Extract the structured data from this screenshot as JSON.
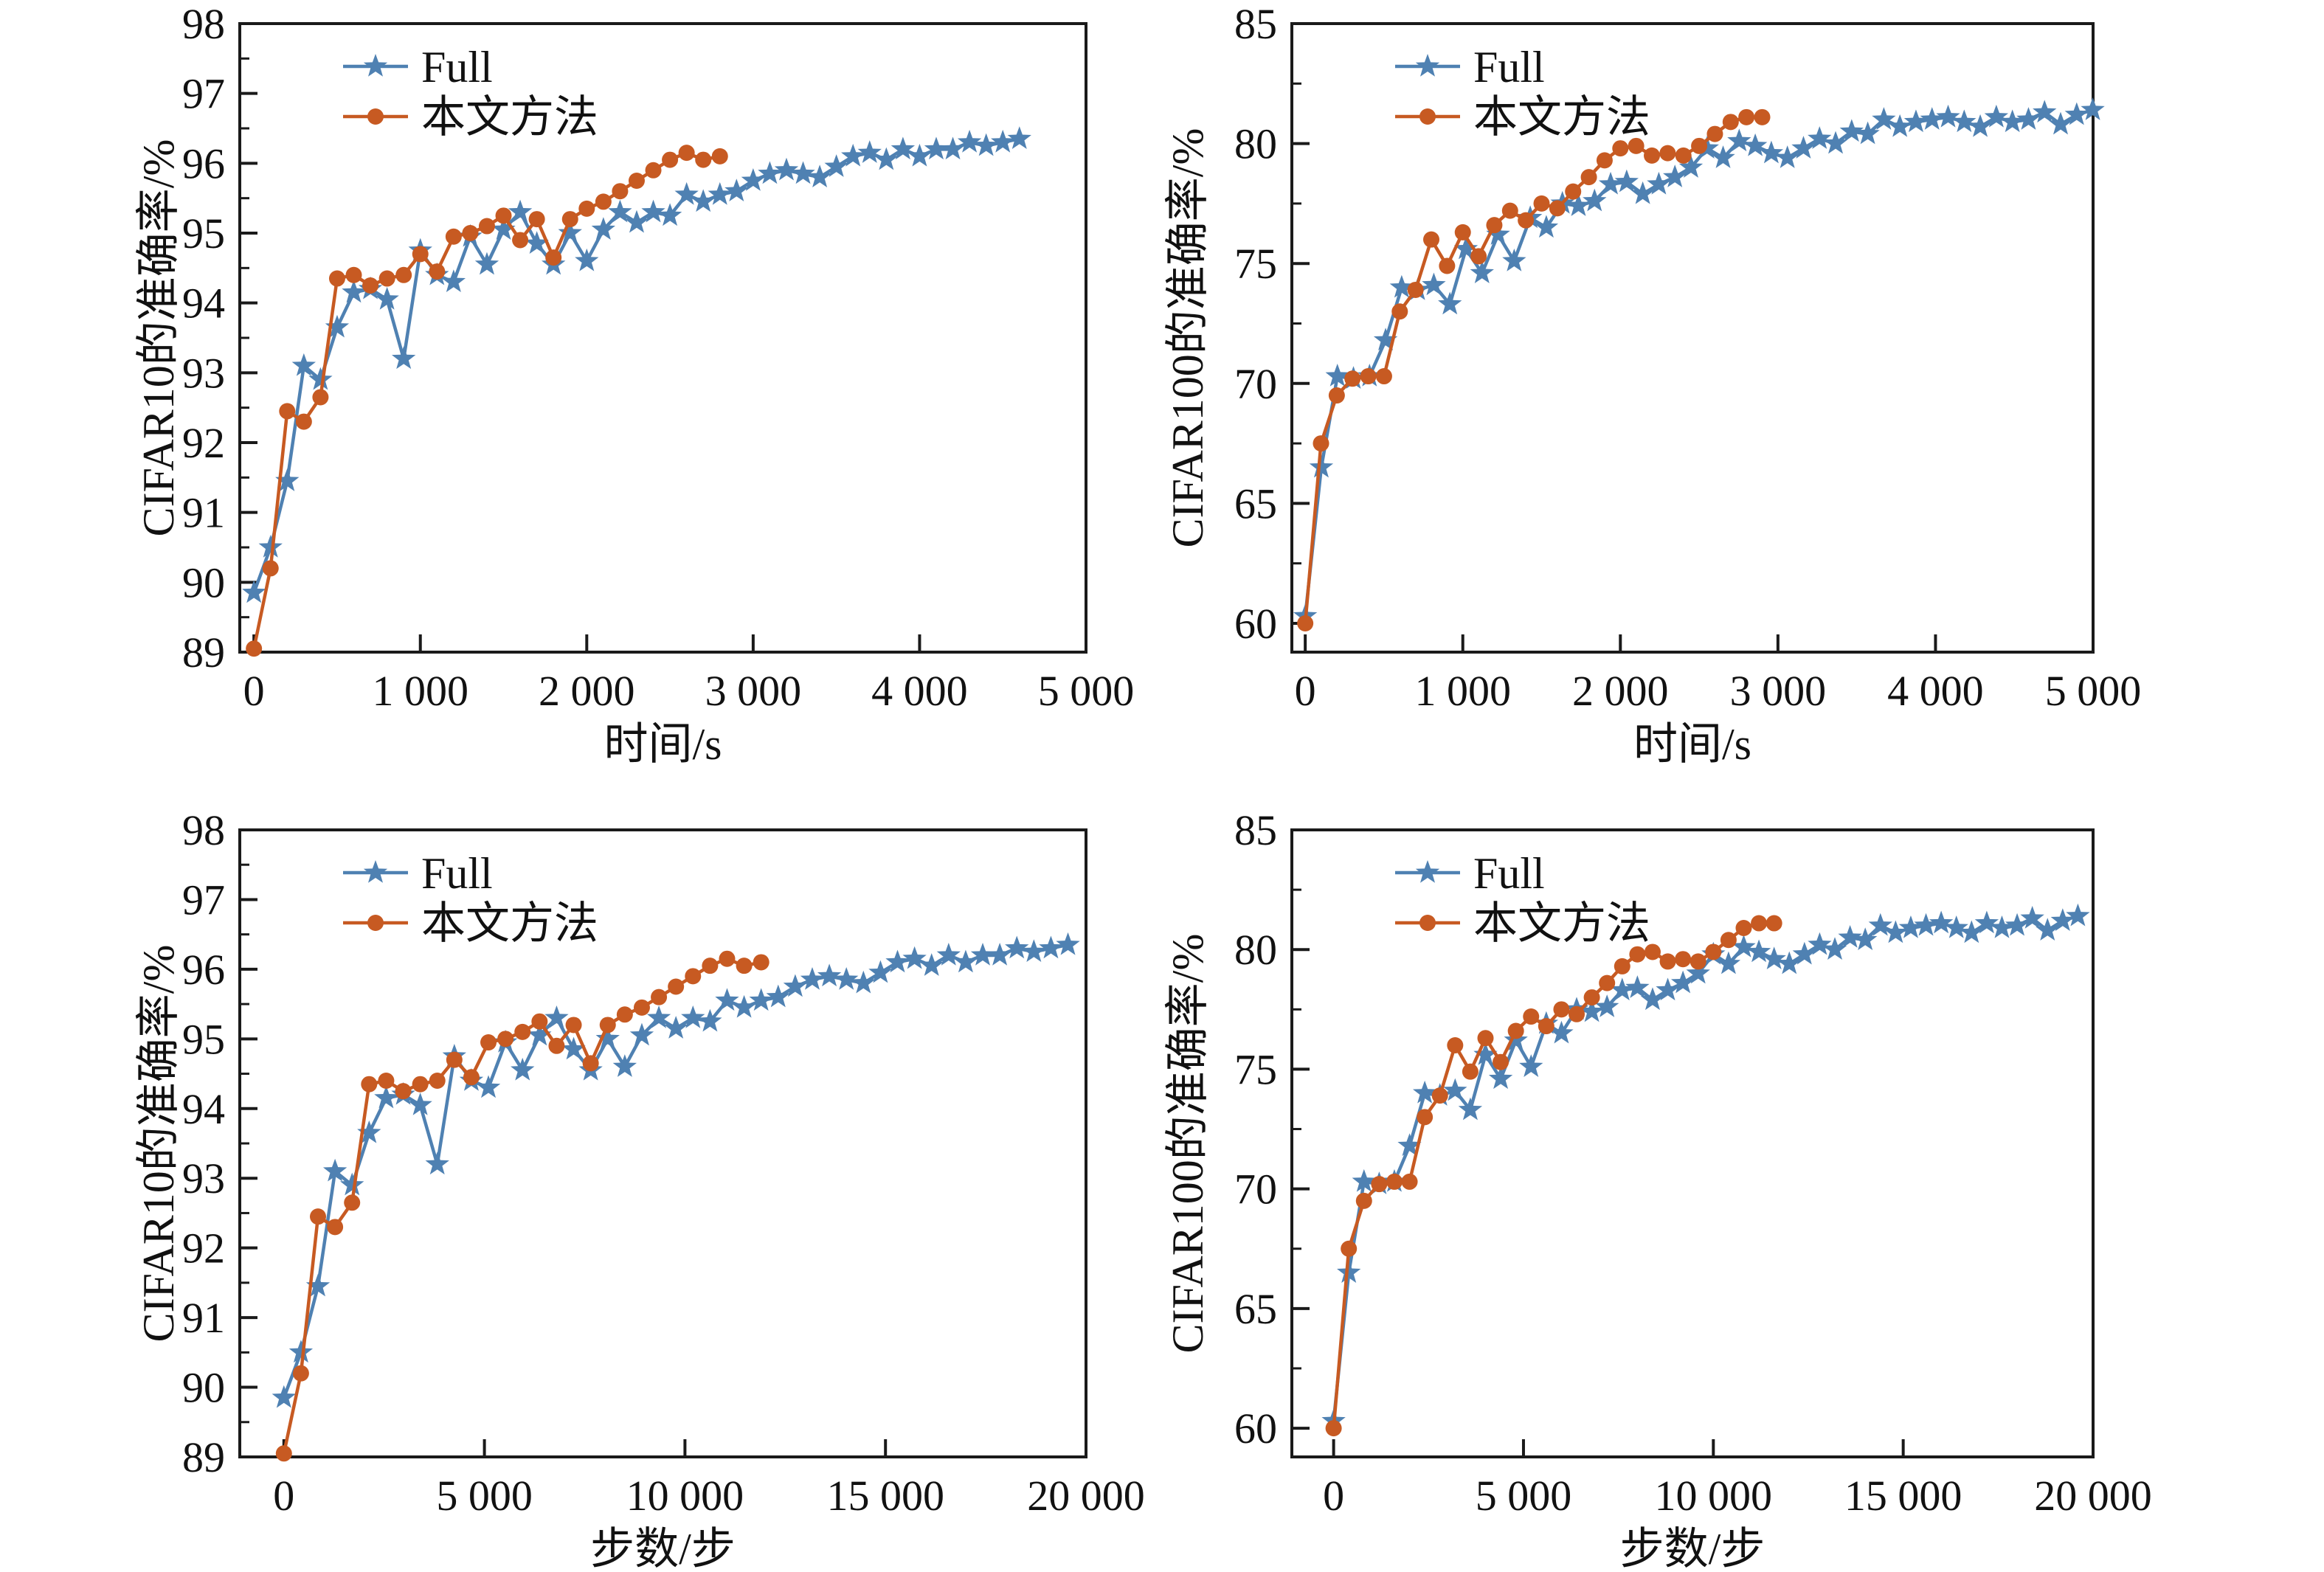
{
  "figure_title": "",
  "colors": {
    "full": "#4f81b2",
    "ours": "#c75a22",
    "axis": "#1a1a1a",
    "background": "#ffffff"
  },
  "legend": {
    "items": [
      {
        "key": "full",
        "label": "Full",
        "marker": "star"
      },
      {
        "key": "ours",
        "label": "本文方法",
        "marker": "circle"
      }
    ],
    "position": "upper-left"
  },
  "chart_data": [
    {
      "id": "cifar10-time",
      "type": "line",
      "title": "",
      "xlabel": "时间/s",
      "ylabel": "CIFAR10的准确率/%",
      "xlim": [
        -85,
        5000
      ],
      "ylim": [
        89,
        98
      ],
      "grid": false,
      "legend_position": "upper-left",
      "xticks": [
        {
          "v": 0,
          "label": "0"
        },
        {
          "v": 1000,
          "label": "1 000"
        },
        {
          "v": 2000,
          "label": "2 000"
        },
        {
          "v": 3000,
          "label": "3 000"
        },
        {
          "v": 4000,
          "label": "4 000"
        },
        {
          "v": 5000,
          "label": "5 000"
        }
      ],
      "yticks": [
        {
          "v": 89,
          "label": "89"
        },
        {
          "v": 90,
          "label": "90"
        },
        {
          "v": 91,
          "label": "91"
        },
        {
          "v": 92,
          "label": "92"
        },
        {
          "v": 93,
          "label": "93"
        },
        {
          "v": 94,
          "label": "94"
        },
        {
          "v": 95,
          "label": "95"
        },
        {
          "v": 96,
          "label": "96"
        },
        {
          "v": 97,
          "label": "97"
        },
        {
          "v": 98,
          "label": "98"
        }
      ],
      "yminor_step": 0.5,
      "series": [
        {
          "name": "Full",
          "key": "full",
          "marker": "star",
          "x": [
            0,
            100,
            200,
            300,
            400,
            500,
            600,
            700,
            800,
            900,
            1000,
            1100,
            1200,
            1300,
            1400,
            1500,
            1600,
            1700,
            1800,
            1900,
            2000,
            2100,
            2200,
            2300,
            2400,
            2500,
            2600,
            2700,
            2800,
            2900,
            3000,
            3100,
            3200,
            3300,
            3400,
            3500,
            3600,
            3700,
            3800,
            3900,
            4000,
            4100,
            4200,
            4300,
            4400,
            4500,
            4600
          ],
          "y": [
            89.85,
            90.5,
            91.45,
            93.1,
            92.9,
            93.65,
            94.15,
            94.2,
            94.05,
            93.2,
            94.75,
            94.4,
            94.3,
            94.95,
            94.55,
            95.05,
            95.3,
            94.85,
            94.55,
            95.0,
            94.6,
            95.05,
            95.3,
            95.15,
            95.3,
            95.25,
            95.55,
            95.45,
            95.55,
            95.6,
            95.75,
            95.85,
            95.9,
            95.85,
            95.8,
            95.95,
            96.1,
            96.15,
            96.05,
            96.2,
            96.1,
            96.2,
            96.2,
            96.3,
            96.25,
            96.3,
            96.35
          ]
        },
        {
          "name": "本文方法",
          "key": "ours",
          "marker": "circle",
          "x": [
            0,
            100,
            200,
            300,
            400,
            500,
            600,
            700,
            800,
            900,
            1000,
            1100,
            1200,
            1300,
            1400,
            1500,
            1600,
            1700,
            1800,
            1900,
            2000,
            2100,
            2200,
            2300,
            2400,
            2500,
            2600,
            2700,
            2800
          ],
          "y": [
            89.05,
            90.2,
            92.45,
            92.3,
            92.65,
            94.35,
            94.4,
            94.25,
            94.35,
            94.4,
            94.7,
            94.45,
            94.95,
            95.0,
            95.1,
            95.25,
            94.9,
            95.2,
            94.65,
            95.2,
            95.35,
            95.45,
            95.6,
            95.75,
            95.9,
            96.05,
            96.15,
            96.05,
            96.1
          ]
        }
      ]
    },
    {
      "id": "cifar100-time",
      "type": "line",
      "title": "",
      "xlabel": "时间/s",
      "ylabel": "CIFAR100的准确率/%",
      "xlim": [
        -85,
        5000
      ],
      "ylim": [
        58.8,
        85
      ],
      "grid": false,
      "legend_position": "upper-left",
      "xticks": [
        {
          "v": 0,
          "label": "0"
        },
        {
          "v": 1000,
          "label": "1 000"
        },
        {
          "v": 2000,
          "label": "2 000"
        },
        {
          "v": 3000,
          "label": "3 000"
        },
        {
          "v": 4000,
          "label": "4 000"
        },
        {
          "v": 5000,
          "label": "5 000"
        }
      ],
      "yticks": [
        {
          "v": 60,
          "label": "60"
        },
        {
          "v": 65,
          "label": "65"
        },
        {
          "v": 70,
          "label": "70"
        },
        {
          "v": 75,
          "label": "75"
        },
        {
          "v": 80,
          "label": "80"
        },
        {
          "v": 85,
          "label": "85"
        }
      ],
      "yminor_step": 2.5,
      "series": [
        {
          "name": "Full",
          "key": "full",
          "marker": "star",
          "x": [
            0,
            102,
            204,
            306,
            408,
            510,
            612,
            714,
            816,
            918,
            1020,
            1122,
            1224,
            1326,
            1428,
            1530,
            1632,
            1734,
            1836,
            1938,
            2040,
            2142,
            2244,
            2346,
            2448,
            2550,
            2652,
            2754,
            2856,
            2958,
            3060,
            3162,
            3264,
            3366,
            3468,
            3570,
            3672,
            3774,
            3876,
            3978,
            4080,
            4182,
            4284,
            4386,
            4488,
            4590,
            4692,
            4794,
            4896,
            4998
          ],
          "y": [
            60.3,
            66.5,
            70.3,
            70.2,
            70.3,
            71.8,
            74.0,
            73.9,
            74.1,
            73.3,
            75.6,
            74.6,
            76.2,
            75.1,
            76.9,
            76.5,
            77.5,
            77.4,
            77.6,
            78.3,
            78.4,
            77.9,
            78.3,
            78.6,
            79.0,
            79.8,
            79.4,
            80.1,
            79.9,
            79.6,
            79.4,
            79.8,
            80.2,
            80.0,
            80.5,
            80.4,
            81.0,
            80.7,
            80.9,
            81.0,
            81.1,
            80.9,
            80.7,
            81.1,
            80.9,
            81.0,
            81.3,
            80.8,
            81.2,
            81.4
          ]
        },
        {
          "name": "本文方法",
          "key": "ours",
          "marker": "circle",
          "x": [
            0,
            100,
            200,
            300,
            400,
            500,
            600,
            700,
            800,
            900,
            1000,
            1100,
            1200,
            1300,
            1400,
            1500,
            1600,
            1700,
            1800,
            1900,
            2000,
            2100,
            2200,
            2300,
            2400,
            2500,
            2600,
            2700,
            2800,
            2900
          ],
          "y": [
            60.0,
            67.5,
            69.5,
            70.2,
            70.3,
            70.3,
            73.0,
            73.9,
            76.0,
            74.9,
            76.3,
            75.3,
            76.6,
            77.2,
            76.8,
            77.5,
            77.3,
            78.0,
            78.6,
            79.3,
            79.8,
            79.9,
            79.5,
            79.6,
            79.5,
            79.9,
            80.4,
            80.9,
            81.1,
            81.1
          ]
        }
      ]
    },
    {
      "id": "cifar10-steps",
      "type": "line",
      "title": "",
      "xlabel": "步数/步",
      "ylabel": "CIFAR10的准确率/%",
      "xlim": [
        -1100,
        20000
      ],
      "ylim": [
        89,
        98
      ],
      "grid": false,
      "legend_position": "upper-left",
      "xticks": [
        {
          "v": 0,
          "label": "0"
        },
        {
          "v": 5000,
          "label": "5 000"
        },
        {
          "v": 10000,
          "label": "10 000"
        },
        {
          "v": 15000,
          "label": "15 000"
        },
        {
          "v": 20000,
          "label": "20 000"
        }
      ],
      "yticks": [
        {
          "v": 89,
          "label": "89"
        },
        {
          "v": 90,
          "label": "90"
        },
        {
          "v": 91,
          "label": "91"
        },
        {
          "v": 92,
          "label": "92"
        },
        {
          "v": 93,
          "label": "93"
        },
        {
          "v": 94,
          "label": "94"
        },
        {
          "v": 95,
          "label": "95"
        },
        {
          "v": 96,
          "label": "96"
        },
        {
          "v": 97,
          "label": "97"
        },
        {
          "v": 98,
          "label": "98"
        }
      ],
      "yminor_step": 0.5,
      "series": [
        {
          "name": "Full",
          "key": "full",
          "marker": "star",
          "x": [
            0,
            425,
            850,
            1275,
            1700,
            2125,
            2550,
            2975,
            3400,
            3825,
            4250,
            4675,
            5100,
            5525,
            5950,
            6375,
            6800,
            7225,
            7650,
            8075,
            8500,
            8925,
            9350,
            9775,
            10200,
            10625,
            11050,
            11475,
            11900,
            12325,
            12750,
            13175,
            13600,
            14025,
            14450,
            14875,
            15300,
            15725,
            16150,
            16575,
            17000,
            17425,
            17850,
            18275,
            18700,
            19125,
            19550
          ],
          "y": [
            89.85,
            90.5,
            91.45,
            93.1,
            92.9,
            93.65,
            94.15,
            94.2,
            94.05,
            93.2,
            94.75,
            94.4,
            94.3,
            94.95,
            94.55,
            95.05,
            95.3,
            94.85,
            94.55,
            95.0,
            94.6,
            95.05,
            95.3,
            95.15,
            95.3,
            95.25,
            95.55,
            95.45,
            95.55,
            95.6,
            95.75,
            95.85,
            95.9,
            95.85,
            95.8,
            95.95,
            96.1,
            96.15,
            96.05,
            96.2,
            96.1,
            96.2,
            96.2,
            96.3,
            96.25,
            96.3,
            96.35
          ]
        },
        {
          "name": "本文方法",
          "key": "ours",
          "marker": "circle",
          "x": [
            0,
            425,
            850,
            1275,
            1700,
            2125,
            2550,
            2975,
            3400,
            3825,
            4250,
            4675,
            5100,
            5525,
            5950,
            6375,
            6800,
            7225,
            7650,
            8075,
            8500,
            8925,
            9350,
            9775,
            10200,
            10625,
            11050,
            11475,
            11900
          ],
          "y": [
            89.05,
            90.2,
            92.45,
            92.3,
            92.65,
            94.35,
            94.4,
            94.25,
            94.35,
            94.4,
            94.7,
            94.45,
            94.95,
            95.0,
            95.1,
            95.25,
            94.9,
            95.2,
            94.65,
            95.2,
            95.35,
            95.45,
            95.6,
            95.75,
            95.9,
            96.05,
            96.15,
            96.05,
            96.1
          ]
        }
      ]
    },
    {
      "id": "cifar100-steps",
      "type": "line",
      "title": "",
      "xlabel": "步数/步",
      "ylabel": "CIFAR100的准确率/%",
      "xlim": [
        -1100,
        20000
      ],
      "ylim": [
        58.8,
        85
      ],
      "grid": false,
      "legend_position": "upper-left",
      "xticks": [
        {
          "v": 0,
          "label": "0"
        },
        {
          "v": 5000,
          "label": "5 000"
        },
        {
          "v": 10000,
          "label": "10 000"
        },
        {
          "v": 15000,
          "label": "15 000"
        },
        {
          "v": 20000,
          "label": "20 000"
        }
      ],
      "yticks": [
        {
          "v": 60,
          "label": "60"
        },
        {
          "v": 65,
          "label": "65"
        },
        {
          "v": 70,
          "label": "70"
        },
        {
          "v": 75,
          "label": "75"
        },
        {
          "v": 80,
          "label": "80"
        },
        {
          "v": 85,
          "label": "85"
        }
      ],
      "yminor_step": 2.5,
      "series": [
        {
          "name": "Full",
          "key": "full",
          "marker": "star",
          "x": [
            0,
            400,
            800,
            1200,
            1600,
            2000,
            2400,
            2800,
            3200,
            3600,
            4000,
            4400,
            4800,
            5200,
            5600,
            6000,
            6400,
            6800,
            7200,
            7600,
            8000,
            8400,
            8800,
            9200,
            9600,
            10000,
            10400,
            10800,
            11200,
            11600,
            12000,
            12400,
            12800,
            13200,
            13600,
            14000,
            14400,
            14800,
            15200,
            15600,
            16000,
            16400,
            16800,
            17200,
            17600,
            18000,
            18400,
            18800,
            19200,
            19600
          ],
          "y": [
            60.3,
            66.5,
            70.3,
            70.2,
            70.3,
            71.8,
            74.0,
            73.9,
            74.1,
            73.3,
            75.6,
            74.6,
            76.2,
            75.1,
            76.9,
            76.5,
            77.5,
            77.4,
            77.6,
            78.3,
            78.4,
            77.9,
            78.3,
            78.6,
            79.0,
            79.8,
            79.4,
            80.1,
            79.9,
            79.6,
            79.4,
            79.8,
            80.2,
            80.0,
            80.5,
            80.4,
            81.0,
            80.7,
            80.9,
            81.0,
            81.1,
            80.9,
            80.7,
            81.1,
            80.9,
            81.0,
            81.3,
            80.8,
            81.2,
            81.4
          ]
        },
        {
          "name": "本文方法",
          "key": "ours",
          "marker": "circle",
          "x": [
            0,
            400,
            800,
            1200,
            1600,
            2000,
            2400,
            2800,
            3200,
            3600,
            4000,
            4400,
            4800,
            5200,
            5600,
            6000,
            6400,
            6800,
            7200,
            7600,
            8000,
            8400,
            8800,
            9200,
            9600,
            10000,
            10400,
            10800,
            11200,
            11600
          ],
          "y": [
            60.0,
            67.5,
            69.5,
            70.2,
            70.3,
            70.3,
            73.0,
            73.9,
            76.0,
            74.9,
            76.3,
            75.3,
            76.6,
            77.2,
            76.8,
            77.5,
            77.3,
            78.0,
            78.6,
            79.3,
            79.8,
            79.9,
            79.5,
            79.6,
            79.5,
            79.9,
            80.4,
            80.9,
            81.1,
            81.1
          ]
        }
      ]
    }
  ]
}
